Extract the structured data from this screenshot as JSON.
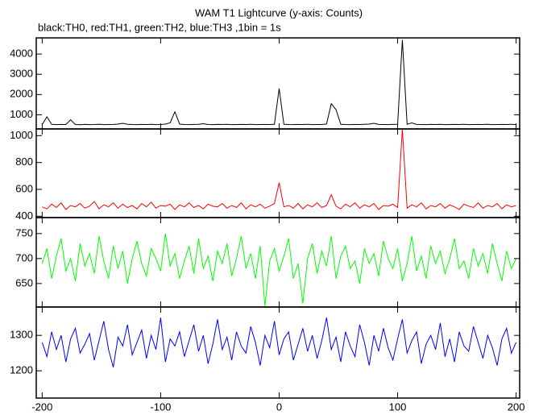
{
  "chart_data": [
    {
      "type": "line",
      "title": "WAM T1 Lightcurve (y-axis: Counts)",
      "subtitle": "black:TH0, red:TH1, green:TH2, blue:TH3 ,1bin = 1s",
      "x": [
        -200,
        -196,
        -192,
        -188,
        -184,
        -180,
        -176,
        -172,
        -168,
        -164,
        -160,
        -156,
        -152,
        -148,
        -144,
        -140,
        -136,
        -132,
        -128,
        -124,
        -120,
        -116,
        -112,
        -108,
        -104,
        -100,
        -96,
        -92,
        -88,
        -84,
        -80,
        -76,
        -72,
        -68,
        -64,
        -60,
        -56,
        -52,
        -48,
        -44,
        -40,
        -36,
        -32,
        -28,
        -24,
        -20,
        -16,
        -12,
        -8,
        -4,
        0,
        4,
        8,
        12,
        16,
        20,
        24,
        28,
        32,
        36,
        40,
        44,
        48,
        52,
        56,
        60,
        64,
        68,
        72,
        76,
        80,
        84,
        88,
        92,
        96,
        100,
        104,
        108,
        112,
        116,
        120,
        124,
        128,
        132,
        136,
        140,
        144,
        148,
        152,
        156,
        160,
        164,
        168,
        172,
        176,
        180,
        184,
        188,
        192,
        196,
        200
      ],
      "xlim": [
        -205,
        203
      ],
      "ylim": [
        300,
        4800
      ],
      "yticks": [
        1000,
        2000,
        3000,
        4000
      ],
      "series": [
        {
          "color": "#000000",
          "values": [
            520,
            900,
            530,
            515,
            525,
            520,
            750,
            520,
            510,
            525,
            515,
            520,
            530,
            515,
            520,
            525,
            540,
            580,
            530,
            520,
            515,
            525,
            520,
            530,
            515,
            520,
            540,
            600,
            1150,
            540,
            520,
            515,
            525,
            530,
            560,
            520,
            515,
            525,
            520,
            530,
            515,
            520,
            525,
            520,
            530,
            515,
            520,
            525,
            520,
            530,
            2300,
            530,
            520,
            515,
            525,
            520,
            530,
            515,
            520,
            525,
            540,
            1550,
            1250,
            530,
            520,
            515,
            525,
            520,
            530,
            540,
            580,
            525,
            520,
            515,
            525,
            530,
            4700,
            530,
            600,
            525,
            520,
            515,
            525,
            520,
            530,
            515,
            520,
            525,
            520,
            530,
            515,
            520,
            525,
            520,
            530,
            515,
            520,
            525,
            520,
            530,
            515
          ]
        }
      ]
    },
    {
      "type": "line",
      "ylim": [
        390,
        1050
      ],
      "yticks": [
        400,
        600,
        800,
        1000
      ],
      "series": [
        {
          "color": "#ff0000",
          "values": [
            470,
            455,
            490,
            465,
            500,
            450,
            480,
            470,
            495,
            460,
            475,
            510,
            455,
            485,
            470,
            500,
            460,
            490,
            465,
            480,
            455,
            495,
            470,
            505,
            460,
            480,
            475,
            490,
            450,
            485,
            470,
            500,
            465,
            480,
            455,
            490,
            475,
            470,
            495,
            460,
            480,
            465,
            500,
            455,
            485,
            470,
            490,
            460,
            475,
            495,
            650,
            470,
            480,
            460,
            495,
            455,
            485,
            470,
            500,
            465,
            480,
            560,
            475,
            455,
            490,
            470,
            500,
            460,
            485,
            470,
            495,
            450,
            480,
            475,
            490,
            465,
            1050,
            460,
            485,
            470,
            500,
            455,
            480,
            470,
            495,
            460,
            485,
            470,
            450,
            490,
            475,
            465,
            500,
            460,
            480,
            470,
            495,
            455,
            485,
            470,
            480
          ]
        }
      ]
    },
    {
      "type": "line",
      "ylim": [
        603,
        782
      ],
      "yticks": [
        650,
        700,
        750
      ],
      "series": [
        {
          "color": "#00ff00",
          "values": [
            690,
            720,
            660,
            705,
            740,
            675,
            700,
            655,
            730,
            685,
            710,
            670,
            745,
            695,
            660,
            725,
            680,
            715,
            650,
            700,
            735,
            690,
            665,
            720,
            700,
            675,
            750,
            685,
            710,
            660,
            695,
            725,
            670,
            740,
            680,
            705,
            655,
            715,
            690,
            730,
            665,
            700,
            745,
            680,
            710,
            660,
            725,
            605,
            695,
            720,
            675,
            705,
            740,
            660,
            690,
            610,
            700,
            730,
            670,
            715,
            685,
            745,
            660,
            705,
            725,
            680,
            695,
            650,
            720,
            690,
            710,
            665,
            735,
            700,
            680,
            720,
            655,
            690,
            745,
            675,
            705,
            660,
            725,
            690,
            715,
            670,
            700,
            740,
            680,
            695,
            660,
            720,
            685,
            710,
            670,
            730,
            690,
            655,
            715,
            680,
            700
          ]
        }
      ]
    },
    {
      "type": "line",
      "ylim": [
        1123,
        1380
      ],
      "yticks": [
        1200,
        1300
      ],
      "xticks": [
        -200,
        -100,
        0,
        100,
        200
      ],
      "series": [
        {
          "color": "#0000ff",
          "values": [
            1280,
            1240,
            1310,
            1260,
            1300,
            1225,
            1290,
            1320,
            1250,
            1275,
            1305,
            1230,
            1285,
            1340,
            1260,
            1210,
            1295,
            1270,
            1330,
            1245,
            1280,
            1315,
            1235,
            1300,
            1260,
            1350,
            1225,
            1290,
            1270,
            1310,
            1240,
            1285,
            1330,
            1255,
            1300,
            1220,
            1275,
            1345,
            1260,
            1295,
            1230,
            1310,
            1270,
            1250,
            1325,
            1280,
            1215,
            1300,
            1265,
            1340,
            1245,
            1290,
            1310,
            1230,
            1275,
            1320,
            1255,
            1300,
            1235,
            1285,
            1350,
            1260,
            1295,
            1225,
            1310,
            1270,
            1240,
            1330,
            1280,
            1215,
            1300,
            1255,
            1320,
            1265,
            1230,
            1290,
            1345,
            1250,
            1285,
            1310,
            1220,
            1275,
            1300,
            1260,
            1335,
            1240,
            1290,
            1225,
            1310,
            1270,
            1255,
            1325,
            1280,
            1235,
            1300,
            1265,
            1215,
            1290,
            1320,
            1250,
            1280
          ]
        }
      ]
    }
  ]
}
